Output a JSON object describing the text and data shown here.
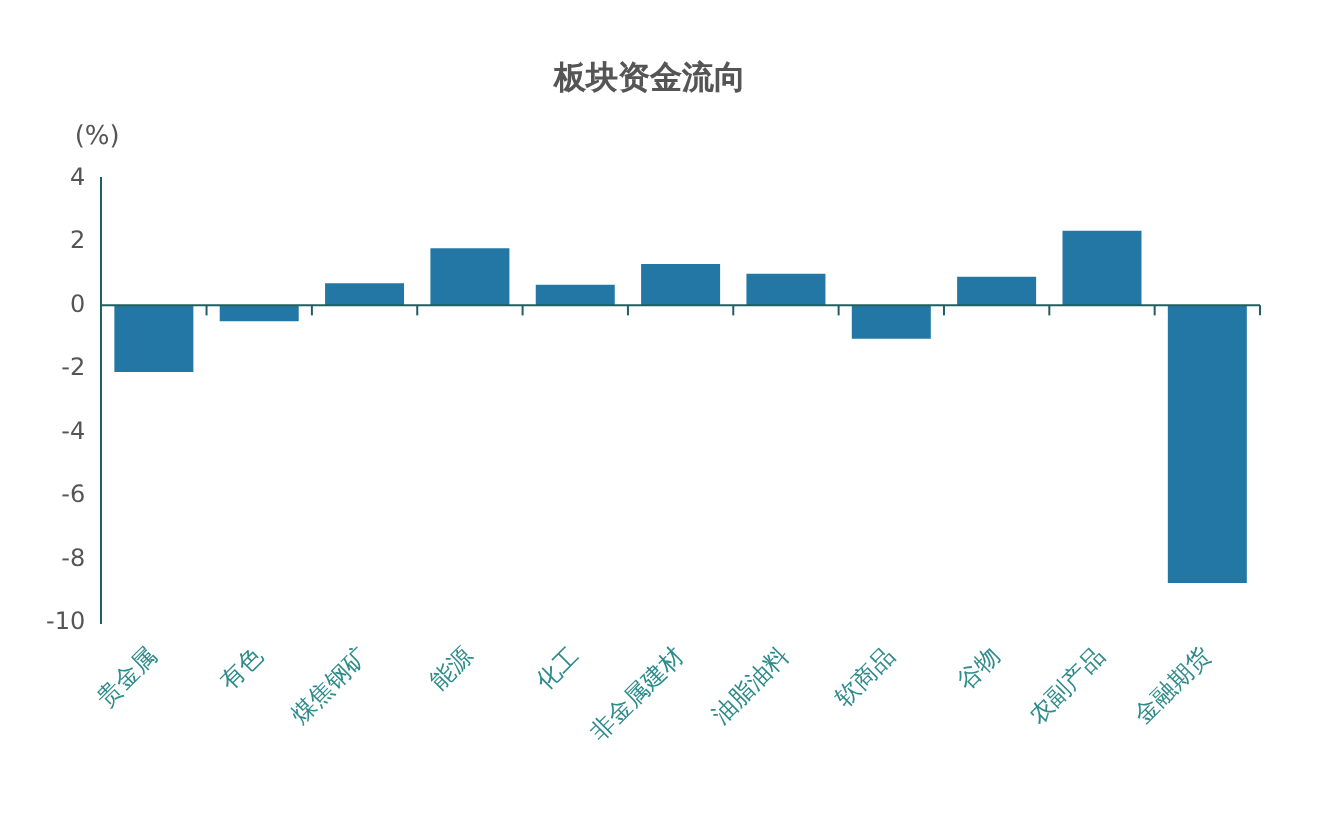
{
  "chart_data": {
    "type": "bar",
    "title": "板块资金流向",
    "ylabel": "(%)",
    "categories": [
      "贵金属",
      "有色",
      "煤焦钢矿",
      "能源",
      "化工",
      "非金属建材",
      "油脂油料",
      "软商品",
      "谷物",
      "农副产品",
      "金融期货"
    ],
    "values": [
      -2.1,
      -0.5,
      0.7,
      1.8,
      0.65,
      1.3,
      1.0,
      -1.05,
      0.9,
      2.35,
      -8.75
    ],
    "color": "#2377a4",
    "ylim": [
      -10,
      4
    ],
    "yticks": [
      -10,
      -8,
      -6,
      -4,
      -2,
      0,
      2,
      4
    ],
    "grid": false,
    "legend": false
  }
}
